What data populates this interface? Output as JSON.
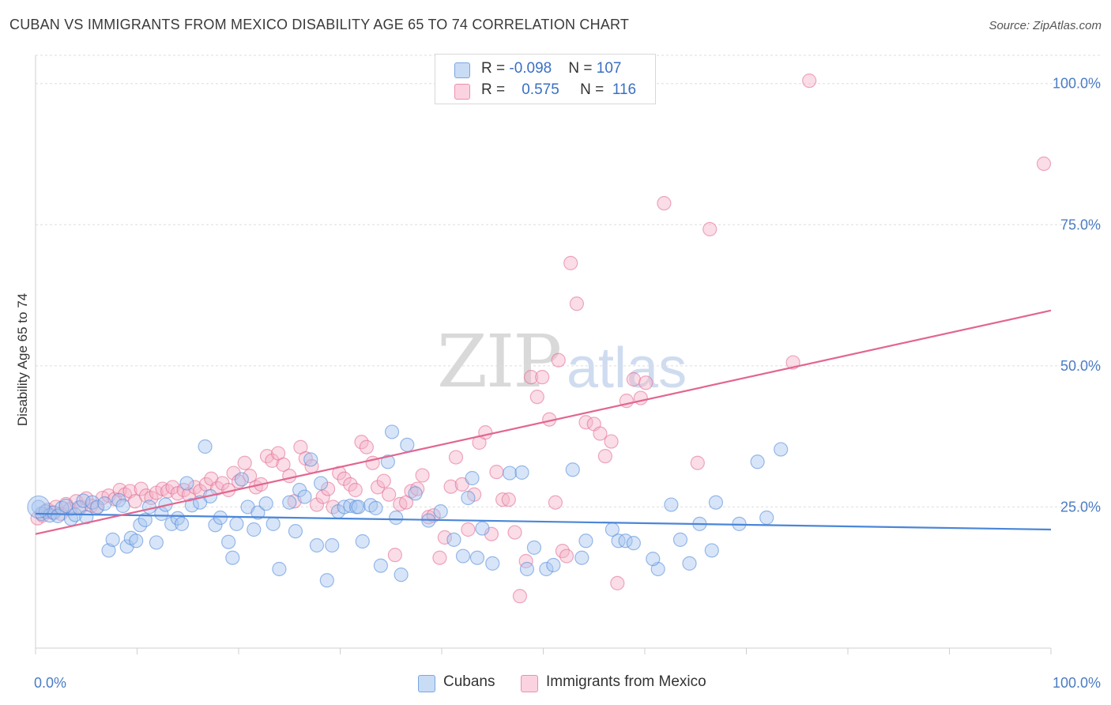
{
  "title": "CUBAN VS IMMIGRANTS FROM MEXICO DISABILITY AGE 65 TO 74 CORRELATION CHART",
  "source": "Source: ZipAtlas.com",
  "watermark": {
    "zip": "ZIP",
    "atlas": "atlas"
  },
  "legend": {
    "rows": [
      {
        "r_label": "R = ",
        "r_value": "-0.098",
        "n_label": "N = ",
        "n_value": "107",
        "color": "#a9c6ef"
      },
      {
        "r_label": "R = ",
        "r_value": "0.575",
        "n_label": "N = ",
        "n_value": "116",
        "color": "#f5b4c8"
      }
    ]
  },
  "bottom_legend": [
    {
      "label": "Cubans",
      "color": "#a9c6ef"
    },
    {
      "label": "Immigrants from Mexico",
      "color": "#f5b4c8"
    }
  ],
  "chart_data": {
    "type": "scatter",
    "ylabel": "Disability Age 65 to 74",
    "xlabel": "",
    "xlim": [
      0,
      100
    ],
    "ylim": [
      0,
      105
    ],
    "x_tick_labels": [
      "0.0%",
      "100.0%"
    ],
    "y_ticks": [
      25,
      50,
      75,
      100
    ],
    "y_tick_labels": [
      "25.0%",
      "50.0%",
      "75.0%",
      "100.0%"
    ],
    "grid": true,
    "series": [
      {
        "name": "Cubans",
        "color": "#4a86d8",
        "fill": "#a9c6ef",
        "trend": {
          "x": [
            0,
            100
          ],
          "y": [
            23.8,
            21.0
          ]
        },
        "points": [
          [
            0.3,
            25.0
          ],
          [
            0.6,
            23.8
          ],
          [
            1.0,
            24.2
          ],
          [
            1.4,
            23.5
          ],
          [
            1.8,
            24.0
          ],
          [
            2.2,
            23.4
          ],
          [
            2.6,
            24.8
          ],
          [
            3.0,
            25.2
          ],
          [
            3.5,
            22.9
          ],
          [
            3.9,
            23.6
          ],
          [
            4.3,
            24.9
          ],
          [
            4.7,
            26.1
          ],
          [
            5.0,
            23.2
          ],
          [
            5.6,
            25.8
          ],
          [
            6.1,
            25.0
          ],
          [
            6.8,
            25.6
          ],
          [
            7.2,
            17.3
          ],
          [
            7.6,
            19.2
          ],
          [
            8.2,
            26.2
          ],
          [
            8.6,
            25.2
          ],
          [
            9.0,
            18.0
          ],
          [
            9.4,
            19.5
          ],
          [
            9.9,
            19.0
          ],
          [
            10.3,
            21.8
          ],
          [
            10.8,
            22.7
          ],
          [
            11.2,
            25.0
          ],
          [
            11.9,
            18.7
          ],
          [
            12.4,
            23.8
          ],
          [
            12.8,
            25.4
          ],
          [
            13.4,
            22.0
          ],
          [
            14.0,
            23.0
          ],
          [
            14.4,
            22.0
          ],
          [
            14.9,
            29.2
          ],
          [
            15.4,
            25.3
          ],
          [
            16.2,
            25.8
          ],
          [
            16.7,
            35.7
          ],
          [
            17.2,
            26.9
          ],
          [
            17.7,
            21.8
          ],
          [
            18.2,
            23.1
          ],
          [
            19.0,
            18.8
          ],
          [
            19.4,
            16.0
          ],
          [
            19.8,
            22.0
          ],
          [
            20.3,
            29.9
          ],
          [
            20.9,
            25.0
          ],
          [
            21.5,
            21.0
          ],
          [
            21.9,
            24.0
          ],
          [
            22.7,
            25.6
          ],
          [
            23.4,
            22.0
          ],
          [
            24.0,
            14.0
          ],
          [
            25.0,
            25.8
          ],
          [
            25.6,
            20.7
          ],
          [
            26.0,
            28.0
          ],
          [
            26.5,
            26.8
          ],
          [
            27.1,
            33.4
          ],
          [
            27.7,
            18.2
          ],
          [
            28.1,
            29.2
          ],
          [
            28.7,
            12.0
          ],
          [
            29.2,
            18.2
          ],
          [
            29.8,
            24.2
          ],
          [
            30.4,
            25.0
          ],
          [
            31.0,
            25.2
          ],
          [
            31.6,
            25.0
          ],
          [
            31.8,
            25.0
          ],
          [
            32.2,
            18.9
          ],
          [
            33.0,
            25.3
          ],
          [
            33.5,
            24.8
          ],
          [
            34.0,
            14.6
          ],
          [
            34.7,
            33.0
          ],
          [
            35.1,
            38.3
          ],
          [
            35.5,
            23.1
          ],
          [
            36.0,
            13.0
          ],
          [
            36.6,
            36.0
          ],
          [
            37.4,
            27.4
          ],
          [
            38.7,
            22.6
          ],
          [
            39.9,
            24.2
          ],
          [
            41.2,
            19.2
          ],
          [
            42.1,
            16.3
          ],
          [
            42.6,
            26.6
          ],
          [
            43.0,
            30.1
          ],
          [
            43.5,
            16.0
          ],
          [
            44.0,
            21.2
          ],
          [
            45.0,
            15.0
          ],
          [
            46.7,
            31.0
          ],
          [
            47.9,
            31.1
          ],
          [
            48.4,
            14.0
          ],
          [
            49.1,
            17.8
          ],
          [
            50.3,
            14.0
          ],
          [
            51.0,
            14.7
          ],
          [
            52.9,
            31.6
          ],
          [
            53.8,
            16.0
          ],
          [
            54.2,
            19.0
          ],
          [
            56.8,
            21.0
          ],
          [
            57.4,
            19.0
          ],
          [
            58.1,
            19.0
          ],
          [
            58.9,
            18.6
          ],
          [
            61.3,
            14.0
          ],
          [
            60.8,
            15.8
          ],
          [
            62.6,
            25.4
          ],
          [
            63.5,
            19.2
          ],
          [
            64.4,
            15.0
          ],
          [
            65.4,
            22.0
          ],
          [
            66.6,
            17.3
          ],
          [
            67.0,
            25.8
          ],
          [
            69.3,
            22.0
          ],
          [
            71.1,
            33.0
          ],
          [
            72.0,
            23.1
          ],
          [
            73.4,
            35.2
          ]
        ]
      },
      {
        "name": "Immigrants from Mexico",
        "color": "#e2668f",
        "fill": "#f5b4c8",
        "trend": {
          "x": [
            0,
            100
          ],
          "y": [
            20.2,
            59.8
          ]
        },
        "points": [
          [
            0.2,
            23.0
          ],
          [
            0.7,
            23.5
          ],
          [
            1.2,
            24.5
          ],
          [
            1.6,
            24.0
          ],
          [
            2.0,
            25.0
          ],
          [
            2.5,
            23.8
          ],
          [
            3.0,
            25.5
          ],
          [
            3.4,
            24.6
          ],
          [
            4.0,
            26.0
          ],
          [
            4.5,
            25.0
          ],
          [
            5.0,
            26.5
          ],
          [
            5.5,
            25.2
          ],
          [
            6.0,
            24.8
          ],
          [
            6.6,
            26.6
          ],
          [
            7.2,
            27.0
          ],
          [
            7.8,
            26.4
          ],
          [
            8.3,
            28.0
          ],
          [
            8.8,
            27.2
          ],
          [
            9.3,
            27.8
          ],
          [
            9.8,
            26.0
          ],
          [
            10.4,
            28.2
          ],
          [
            10.9,
            27.0
          ],
          [
            11.4,
            26.6
          ],
          [
            11.9,
            27.5
          ],
          [
            12.5,
            28.2
          ],
          [
            13.0,
            27.8
          ],
          [
            13.5,
            28.5
          ],
          [
            14.0,
            27.4
          ],
          [
            14.6,
            28.0
          ],
          [
            15.1,
            27.2
          ],
          [
            15.7,
            28.5
          ],
          [
            16.2,
            27.8
          ],
          [
            16.8,
            29.0
          ],
          [
            17.3,
            30.0
          ],
          [
            17.9,
            28.3
          ],
          [
            18.4,
            29.2
          ],
          [
            19.0,
            28.0
          ],
          [
            19.5,
            31.0
          ],
          [
            20.0,
            29.5
          ],
          [
            20.6,
            32.8
          ],
          [
            21.1,
            30.5
          ],
          [
            21.7,
            28.5
          ],
          [
            22.2,
            29.0
          ],
          [
            22.8,
            34.0
          ],
          [
            23.3,
            33.2
          ],
          [
            23.9,
            34.5
          ],
          [
            24.4,
            32.5
          ],
          [
            25.0,
            30.5
          ],
          [
            25.5,
            26.0
          ],
          [
            26.1,
            35.6
          ],
          [
            26.6,
            33.6
          ],
          [
            27.2,
            32.2
          ],
          [
            27.7,
            25.4
          ],
          [
            28.3,
            26.8
          ],
          [
            28.8,
            28.2
          ],
          [
            29.3,
            25.0
          ],
          [
            29.9,
            31.0
          ],
          [
            30.4,
            30.0
          ],
          [
            31.0,
            29.0
          ],
          [
            31.5,
            28.0
          ],
          [
            32.1,
            36.5
          ],
          [
            32.6,
            35.6
          ],
          [
            33.2,
            32.8
          ],
          [
            33.7,
            28.5
          ],
          [
            34.3,
            29.6
          ],
          [
            34.8,
            27.2
          ],
          [
            35.4,
            16.5
          ],
          [
            35.9,
            25.5
          ],
          [
            36.5,
            25.8
          ],
          [
            37.0,
            27.8
          ],
          [
            37.6,
            28.2
          ],
          [
            38.1,
            30.6
          ],
          [
            38.7,
            23.2
          ],
          [
            39.2,
            23.5
          ],
          [
            39.8,
            16.0
          ],
          [
            40.3,
            19.6
          ],
          [
            40.9,
            28.6
          ],
          [
            41.4,
            33.8
          ],
          [
            42.0,
            29.0
          ],
          [
            42.6,
            21.0
          ],
          [
            43.2,
            27.2
          ],
          [
            43.7,
            36.4
          ],
          [
            44.3,
            38.2
          ],
          [
            44.9,
            20.2
          ],
          [
            45.4,
            31.2
          ],
          [
            46.0,
            26.3
          ],
          [
            46.6,
            26.3
          ],
          [
            47.2,
            20.5
          ],
          [
            47.7,
            9.2
          ],
          [
            48.3,
            15.4
          ],
          [
            48.8,
            48.0
          ],
          [
            49.4,
            44.5
          ],
          [
            49.9,
            48.0
          ],
          [
            50.6,
            40.5
          ],
          [
            51.2,
            25.8
          ],
          [
            51.5,
            51.0
          ],
          [
            51.9,
            17.2
          ],
          [
            52.3,
            16.3
          ],
          [
            52.7,
            68.2
          ],
          [
            53.3,
            61.0
          ],
          [
            54.2,
            40.0
          ],
          [
            55.0,
            39.7
          ],
          [
            55.6,
            38.0
          ],
          [
            56.1,
            34.0
          ],
          [
            56.7,
            36.6
          ],
          [
            57.3,
            11.5
          ],
          [
            58.2,
            43.8
          ],
          [
            58.9,
            47.6
          ],
          [
            59.6,
            44.3
          ],
          [
            60.1,
            47.0
          ],
          [
            61.9,
            78.8
          ],
          [
            65.2,
            32.8
          ],
          [
            66.4,
            74.2
          ],
          [
            74.6,
            50.6
          ],
          [
            76.2,
            100.5
          ],
          [
            99.3,
            85.8
          ]
        ]
      }
    ]
  }
}
